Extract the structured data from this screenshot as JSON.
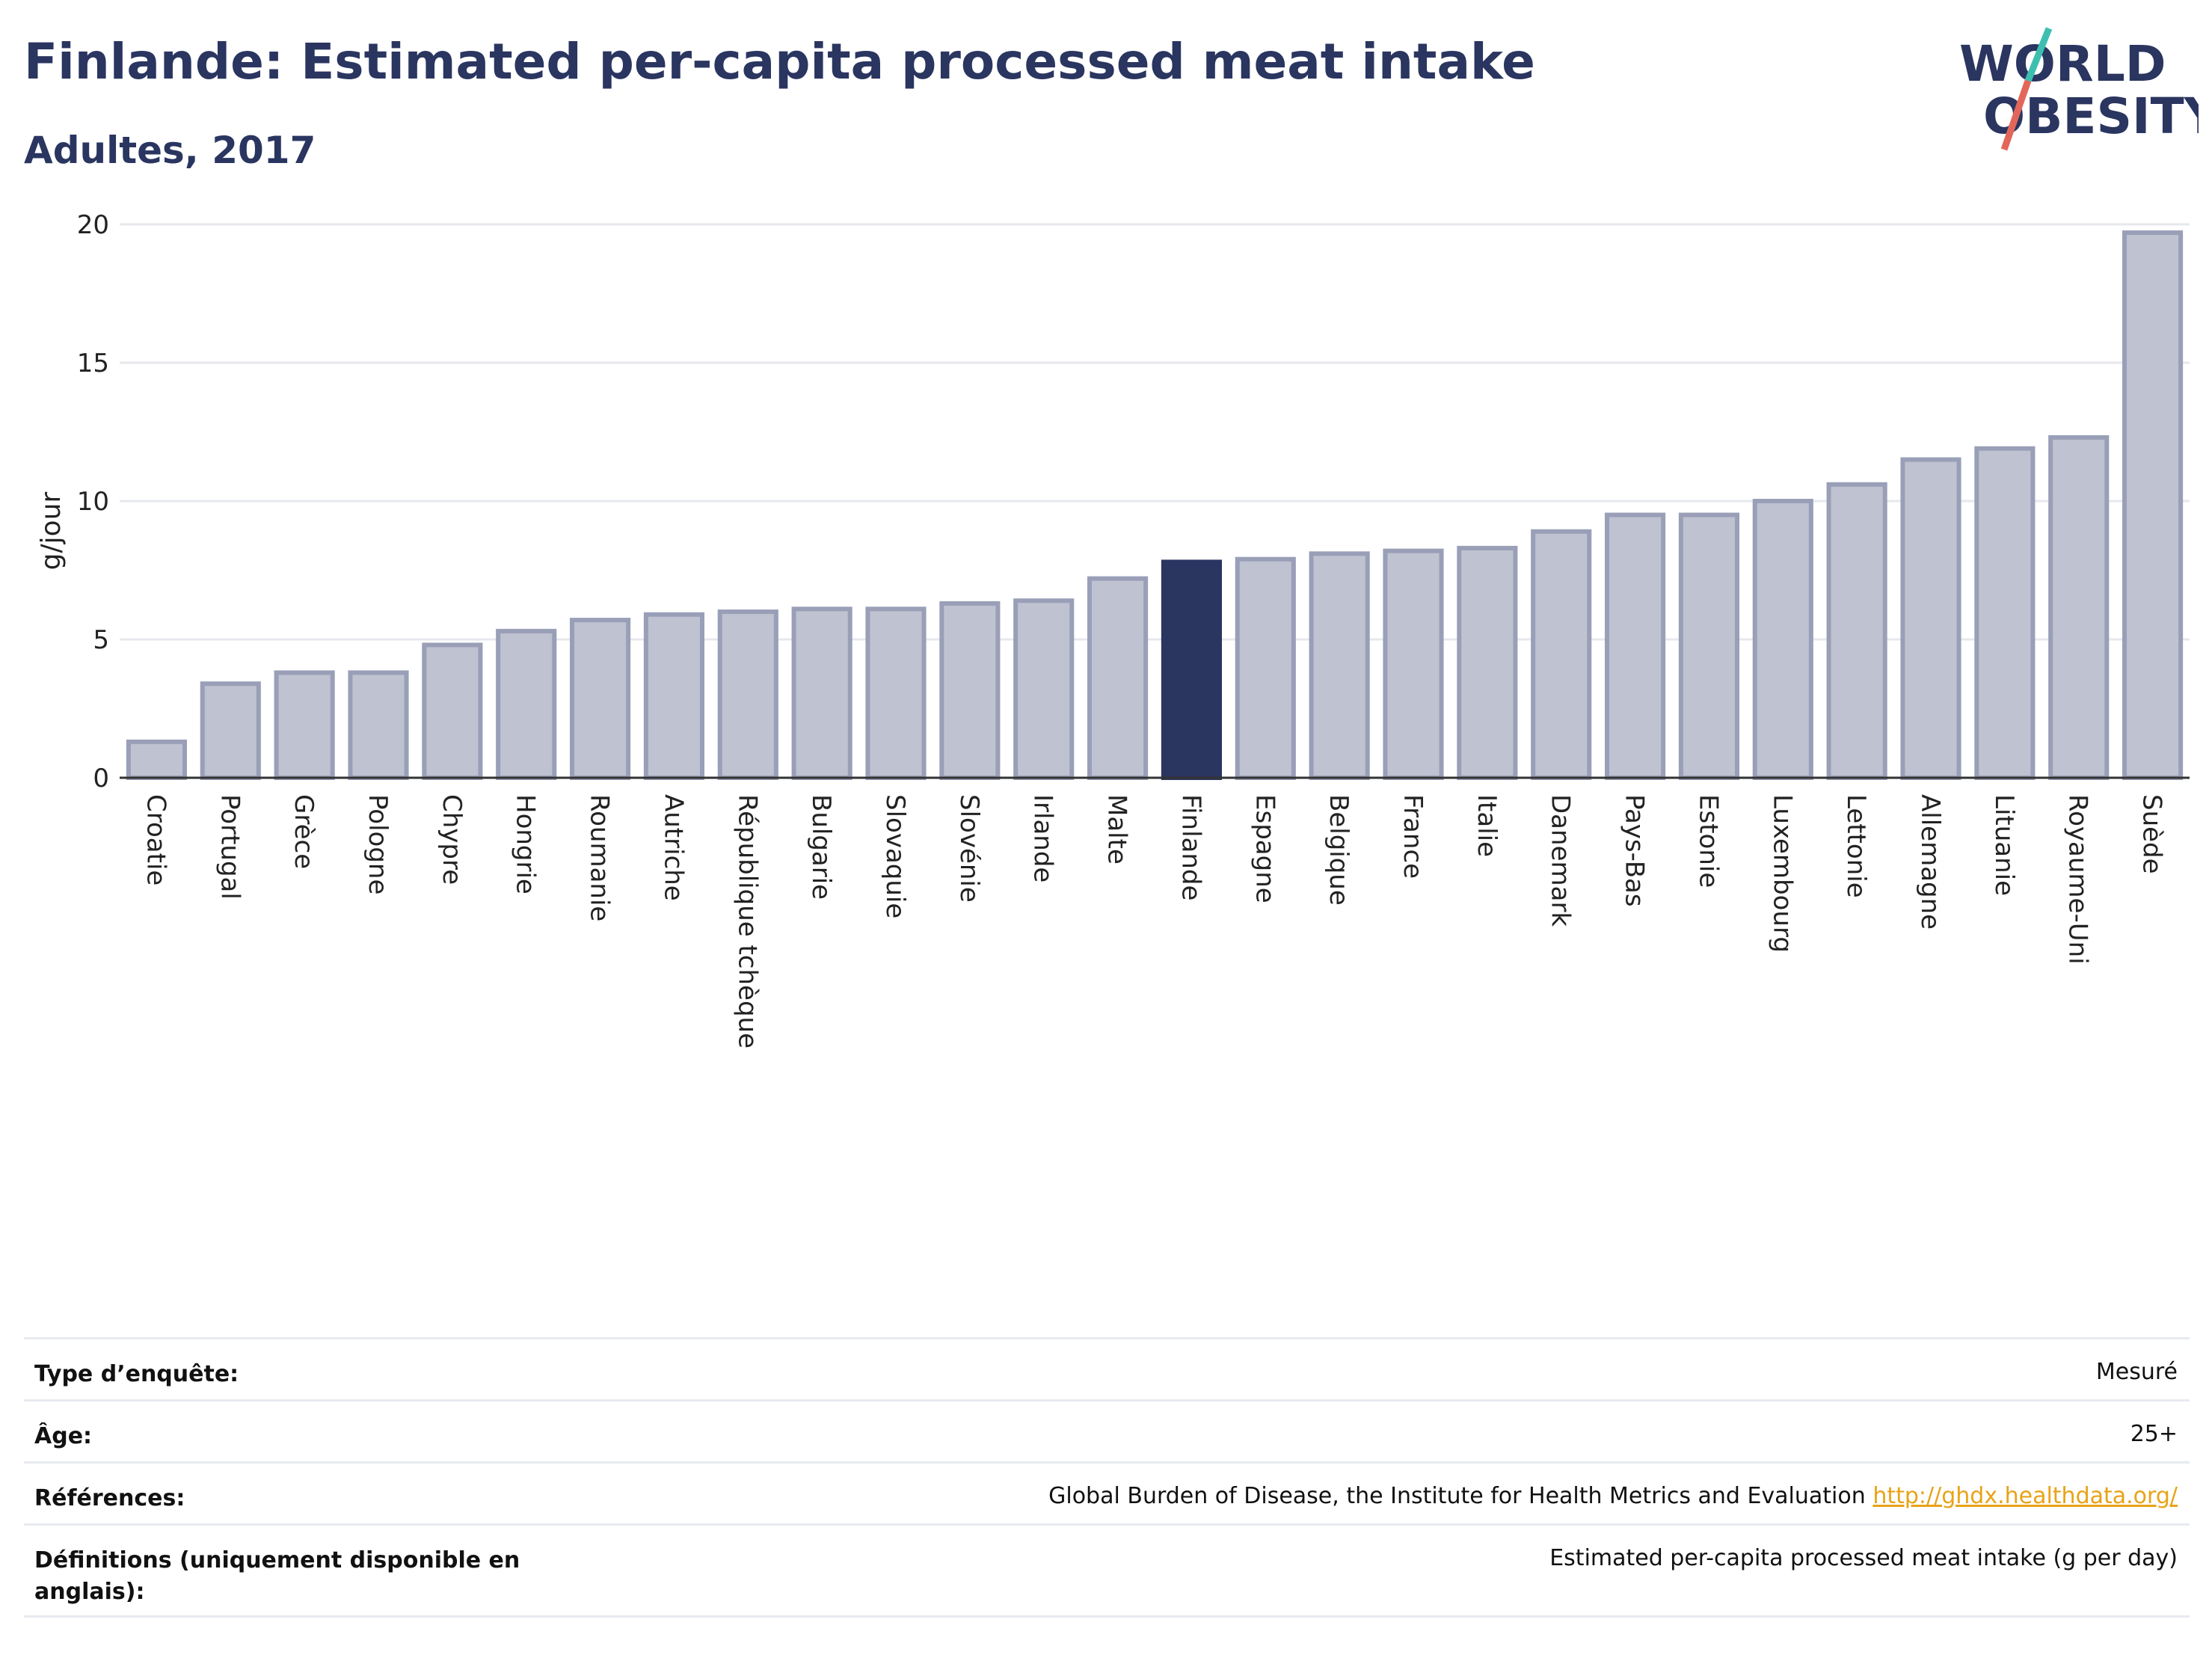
{
  "header": {
    "title": "Finlande: Estimated per-capita processed meat intake",
    "subtitle": "Adultes, 2017"
  },
  "logo": {
    "line1": "WORLD",
    "line2": "OBESITY",
    "accent_teal": "#3dbfb0",
    "accent_red": "#e2675a",
    "text_color": "#2a3560"
  },
  "colors": {
    "highlight": "#2a3560",
    "bar_fill": "#bfc2d0",
    "bar_stroke": "#9a9fb8",
    "grid": "#e6e8ee",
    "axis": "#333333"
  },
  "chart_data": {
    "type": "bar",
    "title": "Finlande: Estimated per-capita processed meat intake",
    "subtitle": "Adultes, 2017",
    "xlabel": "",
    "ylabel": "g/jour",
    "ylim": [
      0,
      20
    ],
    "yticks": [
      0,
      5,
      10,
      15,
      20
    ],
    "grid": true,
    "highlight": "Finlande",
    "categories": [
      "Croatie",
      "Portugal",
      "Grèce",
      "Pologne",
      "Chypre",
      "Hongrie",
      "Roumanie",
      "Autriche",
      "République tchèque",
      "Bulgarie",
      "Slovaquie",
      "Slovénie",
      "Irlande",
      "Malte",
      "Finlande",
      "Espagne",
      "Belgique",
      "France",
      "Italie",
      "Danemark",
      "Pays-Bas",
      "Estonie",
      "Luxembourg",
      "Lettonie",
      "Allemagne",
      "Lituanie",
      "Royaume-Uni",
      "Suède"
    ],
    "values": [
      1.3,
      3.4,
      3.8,
      3.8,
      4.8,
      5.3,
      5.7,
      5.9,
      6.0,
      6.1,
      6.1,
      6.3,
      6.4,
      7.2,
      7.8,
      7.9,
      8.1,
      8.2,
      8.3,
      8.9,
      9.5,
      9.5,
      10.0,
      10.6,
      11.5,
      11.9,
      12.3,
      19.7
    ]
  },
  "info": {
    "rows": [
      {
        "label": "Type d’enquête:",
        "value": "Mesuré"
      },
      {
        "label": "Âge:",
        "value": "25+"
      },
      {
        "label": "Références:",
        "value": "Global Burden of Disease, the Institute for Health Metrics and Evaluation",
        "link": "http://ghdx.healthdata.org/"
      },
      {
        "label": "Définitions (uniquement disponible en anglais):",
        "value": "Estimated per-capita processed meat intake (g per day)"
      }
    ]
  }
}
